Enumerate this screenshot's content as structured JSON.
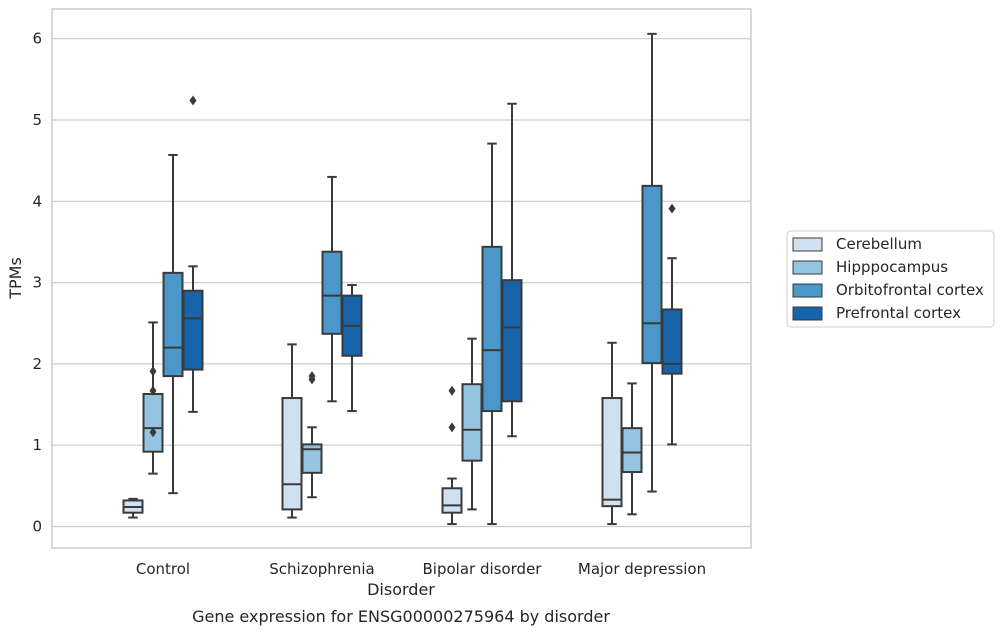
{
  "caption": "Gene expression for ENSG00000275964 by disorder",
  "chart_data": {
    "type": "box",
    "xlabel": "Disorder",
    "ylabel": "TPMs",
    "ylim": [
      -0.25,
      6.37
    ],
    "yticks": [
      0,
      1,
      2,
      3,
      4,
      5,
      6
    ],
    "grid": "horizontal",
    "legend_position": "right",
    "categories": [
      "Control",
      "Schizophrenia",
      "Bipolar disorder",
      "Major depression"
    ],
    "series": [
      {
        "name": "Cerebellum",
        "color": "#d0e1f2",
        "boxes": [
          {
            "whislo": 0.11,
            "q1": 0.17,
            "med": 0.24,
            "q3": 0.32,
            "whishi": 0.34,
            "fliers": []
          },
          {
            "whislo": 0.11,
            "q1": 0.21,
            "med": 0.52,
            "q3": 1.58,
            "whishi": 2.24,
            "fliers": []
          },
          {
            "whislo": 0.03,
            "q1": 0.17,
            "med": 0.26,
            "q3": 0.47,
            "whishi": 0.59,
            "fliers": [
              1.67,
              1.22
            ]
          },
          {
            "whislo": 0.03,
            "q1": 0.25,
            "med": 0.33,
            "q3": 1.58,
            "whishi": 2.26,
            "fliers": []
          }
        ]
      },
      {
        "name": "Hipppocampus",
        "color": "#94c4df",
        "boxes": [
          {
            "whislo": 0.65,
            "q1": 0.92,
            "med": 1.21,
            "q3": 1.63,
            "whishi": 2.51,
            "fliers": [
              1.91,
              1.67,
              1.16
            ]
          },
          {
            "whislo": 0.36,
            "q1": 0.66,
            "med": 0.95,
            "q3": 1.01,
            "whishi": 1.22,
            "fliers": [
              1.85,
              1.81
            ]
          },
          {
            "whislo": 0.21,
            "q1": 0.81,
            "med": 1.19,
            "q3": 1.75,
            "whishi": 2.31,
            "fliers": []
          },
          {
            "whislo": 0.15,
            "q1": 0.67,
            "med": 0.91,
            "q3": 1.21,
            "whishi": 1.76,
            "fliers": []
          }
        ]
      },
      {
        "name": "Orbitofrontal cortex",
        "color": "#4a98c9",
        "boxes": [
          {
            "whislo": 0.41,
            "q1": 1.85,
            "med": 2.2,
            "q3": 3.12,
            "whishi": 4.57,
            "fliers": []
          },
          {
            "whislo": 1.54,
            "q1": 2.37,
            "med": 2.84,
            "q3": 3.38,
            "whishi": 4.3,
            "fliers": []
          },
          {
            "whislo": 0.03,
            "q1": 1.42,
            "med": 2.17,
            "q3": 3.44,
            "whishi": 4.71,
            "fliers": []
          },
          {
            "whislo": 0.43,
            "q1": 2.01,
            "med": 2.5,
            "q3": 4.19,
            "whishi": 6.06,
            "fliers": []
          }
        ]
      },
      {
        "name": "Prefrontal cortex",
        "color": "#1764ab",
        "boxes": [
          {
            "whislo": 1.41,
            "q1": 1.93,
            "med": 2.56,
            "q3": 2.9,
            "whishi": 3.2,
            "fliers": [
              5.24
            ]
          },
          {
            "whislo": 1.42,
            "q1": 2.1,
            "med": 2.47,
            "q3": 2.84,
            "whishi": 2.97,
            "fliers": []
          },
          {
            "whislo": 1.11,
            "q1": 1.54,
            "med": 2.45,
            "q3": 3.03,
            "whishi": 5.2,
            "fliers": []
          },
          {
            "whislo": 1.01,
            "q1": 1.88,
            "med": 2.0,
            "q3": 2.67,
            "whishi": 3.3,
            "fliers": [
              3.91
            ]
          }
        ]
      }
    ]
  },
  "colors": {
    "grid": "#cccccc",
    "frame": "#cccccc",
    "box_edge": "#3a3a3a"
  }
}
